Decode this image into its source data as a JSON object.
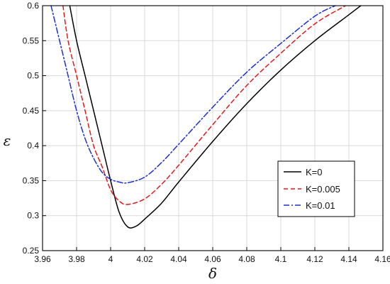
{
  "chart_data": {
    "type": "line",
    "xlabel": "δ",
    "ylabel": "ε",
    "xlim": [
      3.96,
      4.16
    ],
    "ylim": [
      0.25,
      0.6
    ],
    "grid": true,
    "legend_position": "lower-right",
    "x_ticks": [
      3.96,
      3.98,
      4,
      4.02,
      4.04,
      4.06,
      4.08,
      4.1,
      4.12,
      4.14,
      4.16
    ],
    "y_ticks": [
      0.25,
      0.3,
      0.35,
      0.4,
      0.45,
      0.5,
      0.55,
      0.6
    ],
    "x_tick_labels": [
      "3.96",
      "3.98",
      "4",
      "4.02",
      "4.04",
      "4.06",
      "4.08",
      "4.1",
      "4.12",
      "4.14",
      "4.16"
    ],
    "y_tick_labels": [
      "0.25",
      "0.3",
      "0.35",
      "0.4",
      "0.45",
      "0.5",
      "0.55",
      "0.6"
    ],
    "series": [
      {
        "name": "K=0",
        "color": "#000000",
        "dash": "solid",
        "points": [
          [
            3.976,
            0.6
          ],
          [
            3.98,
            0.55
          ],
          [
            3.985,
            0.5
          ],
          [
            3.99,
            0.45
          ],
          [
            3.995,
            0.4
          ],
          [
            4.0,
            0.35
          ],
          [
            4.005,
            0.305
          ],
          [
            4.01,
            0.284
          ],
          [
            4.015,
            0.285
          ],
          [
            4.02,
            0.295
          ],
          [
            4.03,
            0.318
          ],
          [
            4.04,
            0.348
          ],
          [
            4.06,
            0.406
          ],
          [
            4.08,
            0.46
          ],
          [
            4.1,
            0.508
          ],
          [
            4.12,
            0.55
          ],
          [
            4.14,
            0.587
          ],
          [
            4.147,
            0.6
          ]
        ]
      },
      {
        "name": "K=0.005",
        "color": "#e31a1c",
        "dash": "dashed",
        "points": [
          [
            3.972,
            0.6
          ],
          [
            3.975,
            0.55
          ],
          [
            3.98,
            0.5
          ],
          [
            3.985,
            0.45
          ],
          [
            3.99,
            0.4
          ],
          [
            3.995,
            0.37
          ],
          [
            4.0,
            0.337
          ],
          [
            4.005,
            0.321
          ],
          [
            4.01,
            0.316
          ],
          [
            4.02,
            0.324
          ],
          [
            4.03,
            0.345
          ],
          [
            4.04,
            0.372
          ],
          [
            4.06,
            0.43
          ],
          [
            4.08,
            0.486
          ],
          [
            4.1,
            0.532
          ],
          [
            4.12,
            0.574
          ],
          [
            4.138,
            0.6
          ]
        ]
      },
      {
        "name": "K=0.01",
        "color": "#1f2fd1",
        "dash": "dashdot",
        "points": [
          [
            3.965,
            0.6
          ],
          [
            3.97,
            0.55
          ],
          [
            3.975,
            0.5
          ],
          [
            3.98,
            0.45
          ],
          [
            3.985,
            0.41
          ],
          [
            3.99,
            0.382
          ],
          [
            3.995,
            0.362
          ],
          [
            4.0,
            0.352
          ],
          [
            4.005,
            0.348
          ],
          [
            4.01,
            0.347
          ],
          [
            4.02,
            0.355
          ],
          [
            4.03,
            0.376
          ],
          [
            4.04,
            0.402
          ],
          [
            4.06,
            0.455
          ],
          [
            4.08,
            0.505
          ],
          [
            4.1,
            0.546
          ],
          [
            4.12,
            0.585
          ],
          [
            4.132,
            0.6
          ]
        ]
      }
    ]
  }
}
